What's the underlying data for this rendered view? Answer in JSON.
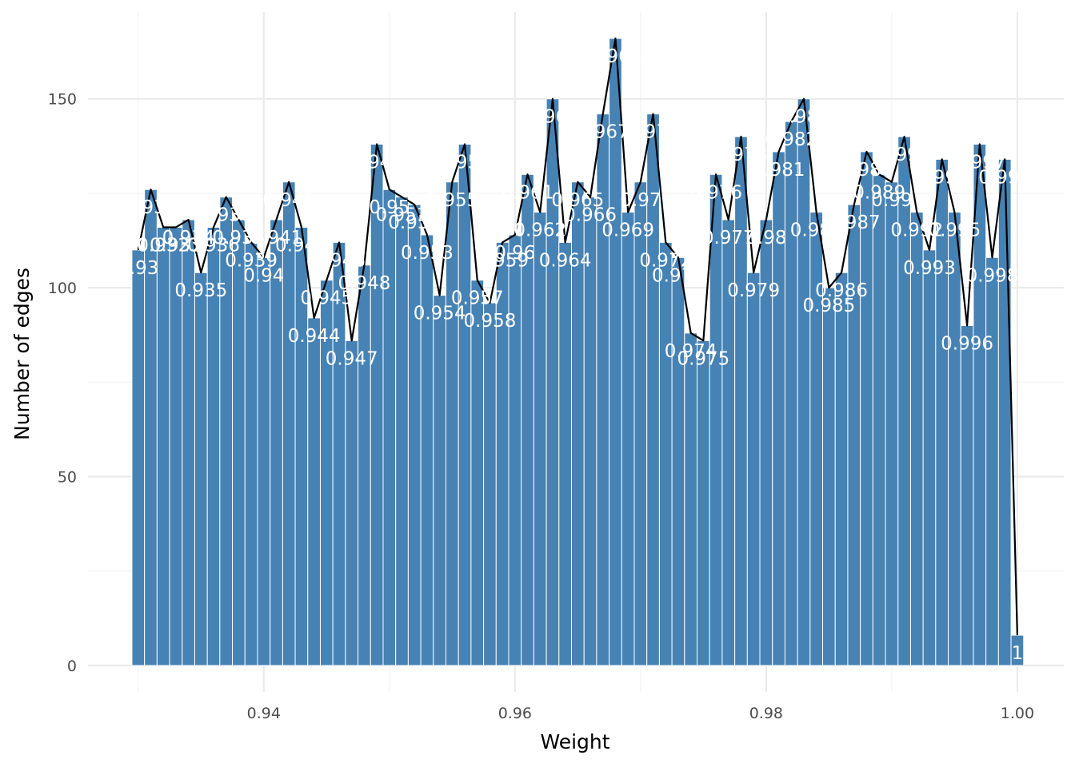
{
  "chart_data": {
    "type": "bar",
    "title": "",
    "xlabel": "Weight",
    "ylabel": "Number of edges",
    "xlim": [
      0.926,
      1.0037
    ],
    "ylim": [
      -7,
      173
    ],
    "xticks": [
      0.94,
      0.96,
      0.98,
      1.0
    ],
    "xtick_labels": [
      "0.94",
      "0.96",
      "0.98",
      "1.00"
    ],
    "yticks": [
      0,
      50,
      100,
      150
    ],
    "ytick_labels": [
      "0",
      "50",
      "100",
      "150"
    ],
    "grid": true,
    "bar_color": "#4682b4",
    "line_color": "#000000",
    "overlay": "line through bar tops",
    "x": [
      0.93,
      0.931,
      0.932,
      0.933,
      0.934,
      0.935,
      0.936,
      0.937,
      0.938,
      0.939,
      0.94,
      0.941,
      0.942,
      0.943,
      0.944,
      0.945,
      0.946,
      0.947,
      0.948,
      0.949,
      0.95,
      0.951,
      0.952,
      0.953,
      0.954,
      0.955,
      0.956,
      0.957,
      0.958,
      0.959,
      0.96,
      0.961,
      0.962,
      0.963,
      0.964,
      0.965,
      0.966,
      0.967,
      0.968,
      0.969,
      0.97,
      0.971,
      0.972,
      0.973,
      0.974,
      0.975,
      0.976,
      0.977,
      0.978,
      0.979,
      0.98,
      0.981,
      0.982,
      0.983,
      0.984,
      0.985,
      0.986,
      0.987,
      0.988,
      0.989,
      0.99,
      0.991,
      0.992,
      0.993,
      0.994,
      0.995,
      0.996,
      0.997,
      0.998,
      0.999,
      1.0
    ],
    "labels": [
      "0.93",
      "0.931",
      "0.932",
      "0.933",
      "0.934",
      "0.935",
      "0.936",
      "0.937",
      "0.938",
      "0.939",
      "0.94",
      "0.941",
      "0.942",
      "0.943",
      "0.944",
      "0.945",
      "0.946",
      "0.947",
      "0.948",
      "0.949",
      "0.95",
      "0.951",
      "0.952",
      "0.953",
      "0.954",
      "0.955",
      "0.956",
      "0.957",
      "0.958",
      "0.959",
      "0.96",
      "0.961",
      "0.962",
      "0.963",
      "0.964",
      "0.965",
      "0.966",
      "0.967",
      "0.968",
      "0.969",
      "0.97",
      "0.971",
      "0.972",
      "0.973",
      "0.974",
      "0.975",
      "0.976",
      "0.977",
      "0.978",
      "0.979",
      "0.98",
      "0.981",
      "0.982",
      "0.983",
      "0.984",
      "0.985",
      "0.986",
      "0.987",
      "0.988",
      "0.989",
      "0.99",
      "0.991",
      "0.992",
      "0.993",
      "0.994",
      "0.995",
      "0.996",
      "0.997",
      "0.998",
      "0.999",
      "1"
    ],
    "values": [
      110,
      126,
      116,
      116,
      118,
      104,
      116,
      124,
      118,
      112,
      108,
      118,
      128,
      116,
      92,
      102,
      112,
      86,
      106,
      138,
      126,
      124,
      122,
      114,
      98,
      128,
      138,
      102,
      96,
      112,
      114,
      130,
      120,
      150,
      112,
      128,
      124,
      146,
      166,
      120,
      128,
      146,
      112,
      108,
      88,
      86,
      130,
      118,
      140,
      104,
      118,
      136,
      144,
      150,
      120,
      100,
      104,
      122,
      136,
      130,
      128,
      140,
      120,
      110,
      134,
      120,
      90,
      138,
      108,
      134,
      8
    ]
  }
}
